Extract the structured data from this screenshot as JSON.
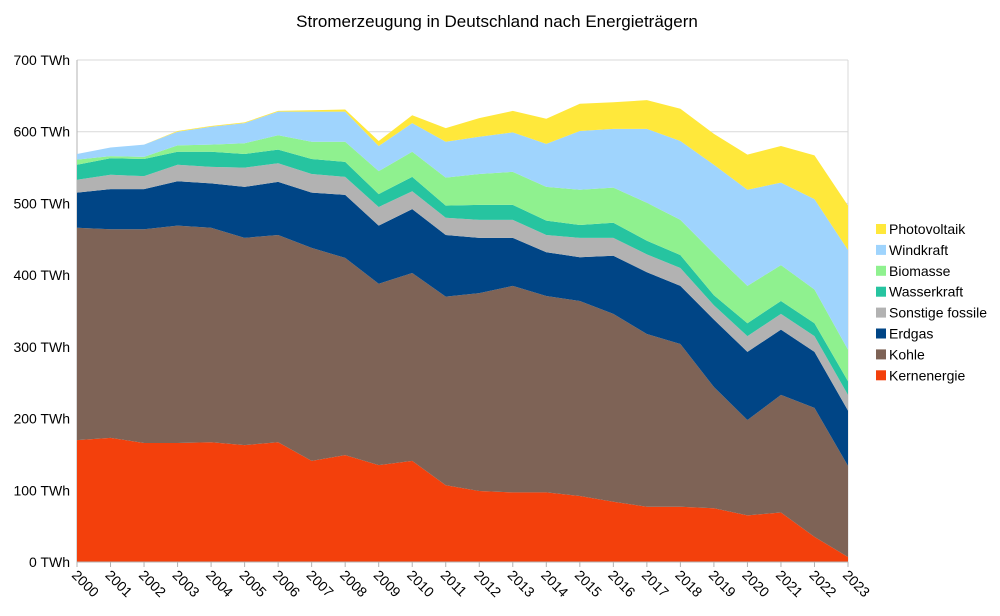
{
  "chart_data": {
    "type": "area",
    "stacked": true,
    "title": "Stromerzeugung in Deutschland nach Energieträgern",
    "xlabel": "",
    "ylabel": "",
    "y_unit_suffix": " TWh",
    "ylim": [
      0,
      700
    ],
    "yticks": [
      0,
      100,
      200,
      300,
      400,
      500,
      600,
      700
    ],
    "ytick_labels": [
      "0 TWh",
      "100 TWh",
      "200 TWh",
      "300 TWh",
      "400 TWh",
      "500 TWh",
      "600 TWh",
      "700 TWh"
    ],
    "grid": true,
    "legend_position": "right",
    "categories": [
      "2000",
      "2001",
      "2002",
      "2003",
      "2004",
      "2005",
      "2006",
      "2007",
      "2008",
      "2009",
      "2010",
      "2011",
      "2012",
      "2013",
      "2014",
      "2015",
      "2016",
      "2017",
      "2018",
      "2019",
      "2020",
      "2021",
      "2022",
      "2023"
    ],
    "series": [
      {
        "name": "Kernenergie",
        "color": "#f3400c",
        "values": [
          170,
          173,
          166,
          166,
          167,
          163,
          167,
          141,
          149,
          135,
          141,
          107,
          99,
          97,
          97,
          92,
          84,
          77,
          77,
          75,
          65,
          69,
          35,
          7
        ]
      },
      {
        "name": "Kohle",
        "color": "#7e6356",
        "values": [
          296,
          291,
          298,
          303,
          299,
          289,
          289,
          297,
          275,
          253,
          262,
          263,
          276,
          288,
          274,
          272,
          262,
          241,
          227,
          169,
          133,
          164,
          180,
          127
        ]
      },
      {
        "name": "Erdgas",
        "color": "#004586",
        "values": [
          49,
          56,
          56,
          62,
          62,
          71,
          74,
          77,
          88,
          81,
          89,
          86,
          77,
          67,
          61,
          61,
          81,
          86,
          81,
          94,
          95,
          91,
          78,
          77
        ]
      },
      {
        "name": "Sonstige fossile",
        "color": "#b2b2b2",
        "values": [
          18,
          20,
          18,
          23,
          23,
          27,
          26,
          26,
          25,
          26,
          25,
          24,
          25,
          25,
          24,
          27,
          25,
          25,
          25,
          20,
          22,
          22,
          22,
          22
        ]
      },
      {
        "name": "Wasserkraft",
        "color": "#26c4a0",
        "values": [
          21,
          23,
          24,
          18,
          21,
          19,
          19,
          21,
          21,
          18,
          20,
          17,
          21,
          21,
          20,
          18,
          21,
          19,
          18,
          14,
          18,
          18,
          18,
          19
        ]
      },
      {
        "name": "Biomasse",
        "color": "#8ff18f",
        "values": [
          7,
          3,
          3,
          9,
          10,
          15,
          20,
          24,
          28,
          32,
          35,
          39,
          43,
          46,
          47,
          49,
          49,
          53,
          49,
          58,
          52,
          50,
          47,
          44
        ]
      },
      {
        "name": "Windkraft",
        "color": "#9fd4fd",
        "values": [
          8,
          12,
          17,
          19,
          25,
          28,
          33,
          42,
          42,
          35,
          40,
          50,
          52,
          55,
          60,
          82,
          82,
          103,
          110,
          124,
          134,
          115,
          126,
          139
        ]
      },
      {
        "name": "Photovoltaik",
        "color": "#ffe83b",
        "values": [
          0,
          0,
          0,
          1,
          1,
          1,
          1,
          2,
          3,
          7,
          11,
          19,
          26,
          30,
          35,
          38,
          37,
          40,
          45,
          43,
          49,
          51,
          61,
          62
        ]
      }
    ]
  }
}
